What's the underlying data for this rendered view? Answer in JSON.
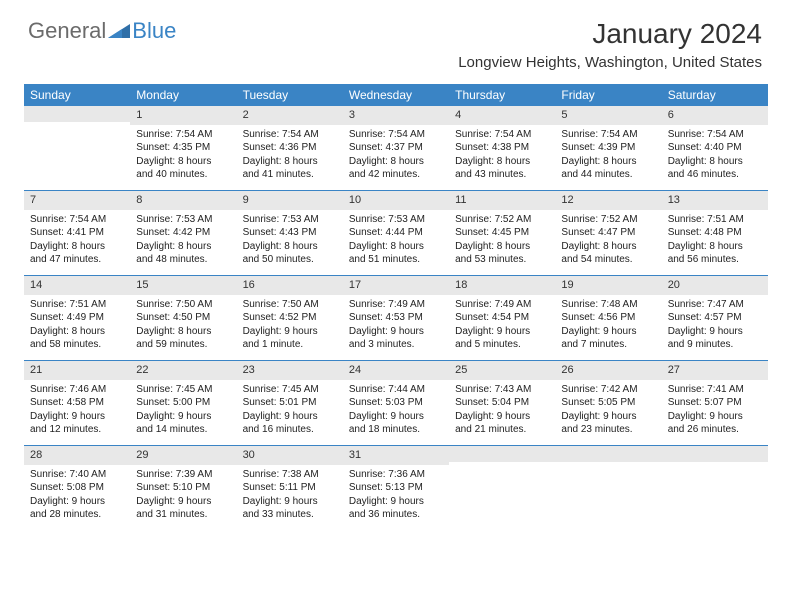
{
  "brand": {
    "part1": "General",
    "part2": "Blue"
  },
  "title": "January 2024",
  "location": "Longview Heights, Washington, United States",
  "colors": {
    "accent": "#3a84c5",
    "header_text": "#ffffff",
    "daynum_bg": "#e8e8e8",
    "text": "#222222",
    "logo_gray": "#6b6b6b"
  },
  "day_headers": [
    "Sunday",
    "Monday",
    "Tuesday",
    "Wednesday",
    "Thursday",
    "Friday",
    "Saturday"
  ],
  "weeks": [
    [
      {
        "n": "",
        "sr": "",
        "ss": "",
        "dl": ""
      },
      {
        "n": "1",
        "sr": "Sunrise: 7:54 AM",
        "ss": "Sunset: 4:35 PM",
        "dl": "Daylight: 8 hours and 40 minutes."
      },
      {
        "n": "2",
        "sr": "Sunrise: 7:54 AM",
        "ss": "Sunset: 4:36 PM",
        "dl": "Daylight: 8 hours and 41 minutes."
      },
      {
        "n": "3",
        "sr": "Sunrise: 7:54 AM",
        "ss": "Sunset: 4:37 PM",
        "dl": "Daylight: 8 hours and 42 minutes."
      },
      {
        "n": "4",
        "sr": "Sunrise: 7:54 AM",
        "ss": "Sunset: 4:38 PM",
        "dl": "Daylight: 8 hours and 43 minutes."
      },
      {
        "n": "5",
        "sr": "Sunrise: 7:54 AM",
        "ss": "Sunset: 4:39 PM",
        "dl": "Daylight: 8 hours and 44 minutes."
      },
      {
        "n": "6",
        "sr": "Sunrise: 7:54 AM",
        "ss": "Sunset: 4:40 PM",
        "dl": "Daylight: 8 hours and 46 minutes."
      }
    ],
    [
      {
        "n": "7",
        "sr": "Sunrise: 7:54 AM",
        "ss": "Sunset: 4:41 PM",
        "dl": "Daylight: 8 hours and 47 minutes."
      },
      {
        "n": "8",
        "sr": "Sunrise: 7:53 AM",
        "ss": "Sunset: 4:42 PM",
        "dl": "Daylight: 8 hours and 48 minutes."
      },
      {
        "n": "9",
        "sr": "Sunrise: 7:53 AM",
        "ss": "Sunset: 4:43 PM",
        "dl": "Daylight: 8 hours and 50 minutes."
      },
      {
        "n": "10",
        "sr": "Sunrise: 7:53 AM",
        "ss": "Sunset: 4:44 PM",
        "dl": "Daylight: 8 hours and 51 minutes."
      },
      {
        "n": "11",
        "sr": "Sunrise: 7:52 AM",
        "ss": "Sunset: 4:45 PM",
        "dl": "Daylight: 8 hours and 53 minutes."
      },
      {
        "n": "12",
        "sr": "Sunrise: 7:52 AM",
        "ss": "Sunset: 4:47 PM",
        "dl": "Daylight: 8 hours and 54 minutes."
      },
      {
        "n": "13",
        "sr": "Sunrise: 7:51 AM",
        "ss": "Sunset: 4:48 PM",
        "dl": "Daylight: 8 hours and 56 minutes."
      }
    ],
    [
      {
        "n": "14",
        "sr": "Sunrise: 7:51 AM",
        "ss": "Sunset: 4:49 PM",
        "dl": "Daylight: 8 hours and 58 minutes."
      },
      {
        "n": "15",
        "sr": "Sunrise: 7:50 AM",
        "ss": "Sunset: 4:50 PM",
        "dl": "Daylight: 8 hours and 59 minutes."
      },
      {
        "n": "16",
        "sr": "Sunrise: 7:50 AM",
        "ss": "Sunset: 4:52 PM",
        "dl": "Daylight: 9 hours and 1 minute."
      },
      {
        "n": "17",
        "sr": "Sunrise: 7:49 AM",
        "ss": "Sunset: 4:53 PM",
        "dl": "Daylight: 9 hours and 3 minutes."
      },
      {
        "n": "18",
        "sr": "Sunrise: 7:49 AM",
        "ss": "Sunset: 4:54 PM",
        "dl": "Daylight: 9 hours and 5 minutes."
      },
      {
        "n": "19",
        "sr": "Sunrise: 7:48 AM",
        "ss": "Sunset: 4:56 PM",
        "dl": "Daylight: 9 hours and 7 minutes."
      },
      {
        "n": "20",
        "sr": "Sunrise: 7:47 AM",
        "ss": "Sunset: 4:57 PM",
        "dl": "Daylight: 9 hours and 9 minutes."
      }
    ],
    [
      {
        "n": "21",
        "sr": "Sunrise: 7:46 AM",
        "ss": "Sunset: 4:58 PM",
        "dl": "Daylight: 9 hours and 12 minutes."
      },
      {
        "n": "22",
        "sr": "Sunrise: 7:45 AM",
        "ss": "Sunset: 5:00 PM",
        "dl": "Daylight: 9 hours and 14 minutes."
      },
      {
        "n": "23",
        "sr": "Sunrise: 7:45 AM",
        "ss": "Sunset: 5:01 PM",
        "dl": "Daylight: 9 hours and 16 minutes."
      },
      {
        "n": "24",
        "sr": "Sunrise: 7:44 AM",
        "ss": "Sunset: 5:03 PM",
        "dl": "Daylight: 9 hours and 18 minutes."
      },
      {
        "n": "25",
        "sr": "Sunrise: 7:43 AM",
        "ss": "Sunset: 5:04 PM",
        "dl": "Daylight: 9 hours and 21 minutes."
      },
      {
        "n": "26",
        "sr": "Sunrise: 7:42 AM",
        "ss": "Sunset: 5:05 PM",
        "dl": "Daylight: 9 hours and 23 minutes."
      },
      {
        "n": "27",
        "sr": "Sunrise: 7:41 AM",
        "ss": "Sunset: 5:07 PM",
        "dl": "Daylight: 9 hours and 26 minutes."
      }
    ],
    [
      {
        "n": "28",
        "sr": "Sunrise: 7:40 AM",
        "ss": "Sunset: 5:08 PM",
        "dl": "Daylight: 9 hours and 28 minutes."
      },
      {
        "n": "29",
        "sr": "Sunrise: 7:39 AM",
        "ss": "Sunset: 5:10 PM",
        "dl": "Daylight: 9 hours and 31 minutes."
      },
      {
        "n": "30",
        "sr": "Sunrise: 7:38 AM",
        "ss": "Sunset: 5:11 PM",
        "dl": "Daylight: 9 hours and 33 minutes."
      },
      {
        "n": "31",
        "sr": "Sunrise: 7:36 AM",
        "ss": "Sunset: 5:13 PM",
        "dl": "Daylight: 9 hours and 36 minutes."
      },
      {
        "n": "",
        "sr": "",
        "ss": "",
        "dl": ""
      },
      {
        "n": "",
        "sr": "",
        "ss": "",
        "dl": ""
      },
      {
        "n": "",
        "sr": "",
        "ss": "",
        "dl": ""
      }
    ]
  ]
}
